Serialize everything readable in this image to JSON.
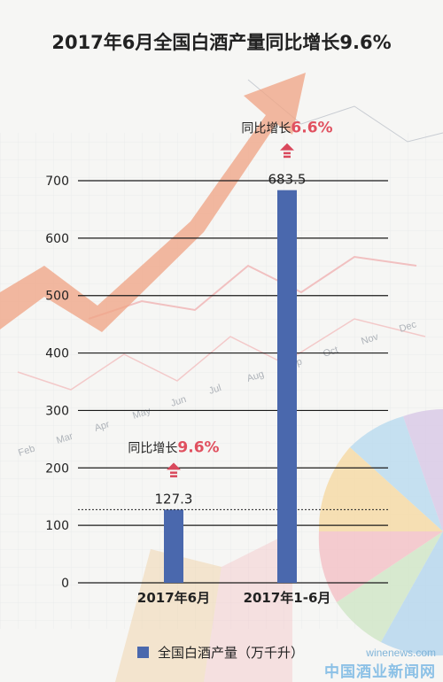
{
  "title": "2017年6月全国白酒产量同比增长9.6%",
  "chart_data": {
    "type": "bar",
    "categories": [
      "2017年6月",
      "2017年1-6月"
    ],
    "values": [
      127.3,
      683.5
    ],
    "value_labels": [
      "127.3",
      "683.5"
    ],
    "growth_prefix": "同比增长",
    "growth_values": [
      "9.6%",
      "6.6%"
    ],
    "yticks": [
      0,
      100,
      200,
      300,
      400,
      500,
      600,
      700
    ],
    "ylim": [
      0,
      700
    ],
    "xlabel": "",
    "ylabel": "",
    "grid": true,
    "legend": "全国白酒产量（万千升）",
    "legend_position": "bottom-center",
    "bar_color": "#4a68ad",
    "growth_color": "#e0505f",
    "arrow_color": "#d9485c"
  },
  "background": {
    "months": [
      "Feb",
      "Mar",
      "Apr",
      "May",
      "Jun",
      "Jul",
      "Aug",
      "Sep",
      "Oct",
      "Nov",
      "Dec"
    ]
  },
  "watermark": {
    "url": "winenews.com",
    "site": "中国酒业新闻网"
  }
}
